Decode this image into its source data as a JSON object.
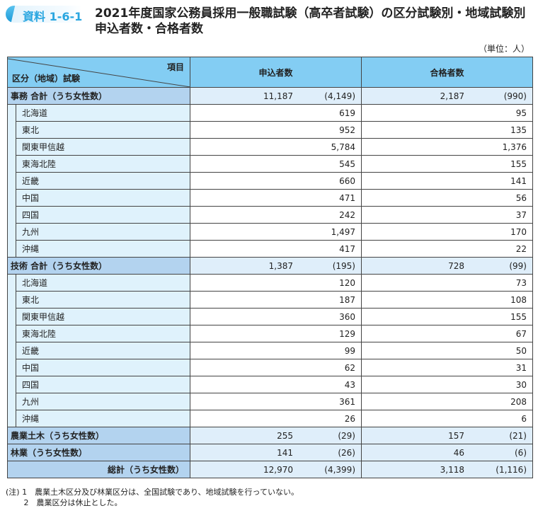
{
  "header": {
    "badge": "資料 1-6-1",
    "title_line1": "2021年度国家公務員採用一般職試験（高卒者試験）の区分試験別・地域試験別",
    "title_line2": "申込者数・合格者数",
    "unit": "（単位：人）"
  },
  "table": {
    "corner_top": "項目",
    "corner_bottom": "区分（地域）試験",
    "col1": "申込者数",
    "col2": "合格者数",
    "jimu": {
      "label": "事務 合計（うち女性数）",
      "app": "11,187",
      "app_f": "(4,149)",
      "pass": "2,187",
      "pass_f": "(990)",
      "rows": [
        [
          "北海道",
          "619",
          "95"
        ],
        [
          "東北",
          "952",
          "135"
        ],
        [
          "関東甲信越",
          "5,784",
          "1,376"
        ],
        [
          "東海北陸",
          "545",
          "155"
        ],
        [
          "近畿",
          "660",
          "141"
        ],
        [
          "中国",
          "471",
          "56"
        ],
        [
          "四国",
          "242",
          "37"
        ],
        [
          "九州",
          "1,497",
          "170"
        ],
        [
          "沖縄",
          "417",
          "22"
        ]
      ]
    },
    "gijutsu": {
      "label": "技術 合計（うち女性数）",
      "app": "1,387",
      "app_f": "(195)",
      "pass": "728",
      "pass_f": "(99)",
      "rows": [
        [
          "北海道",
          "120",
          "73"
        ],
        [
          "東北",
          "187",
          "108"
        ],
        [
          "関東甲信越",
          "360",
          "155"
        ],
        [
          "東海北陸",
          "129",
          "67"
        ],
        [
          "近畿",
          "99",
          "50"
        ],
        [
          "中国",
          "62",
          "31"
        ],
        [
          "四国",
          "43",
          "30"
        ],
        [
          "九州",
          "361",
          "208"
        ],
        [
          "沖縄",
          "26",
          "6"
        ]
      ]
    },
    "nogyo": {
      "label": "農業土木（うち女性数）",
      "app": "255",
      "app_f": "(29)",
      "pass": "157",
      "pass_f": "(21)"
    },
    "ringyo": {
      "label": "林業（うち女性数）",
      "app": "141",
      "app_f": "(26)",
      "pass": "46",
      "pass_f": "(6)"
    },
    "total": {
      "label": "総計（うち女性数）",
      "app": "12,970",
      "app_f": "(4,399)",
      "pass": "3,118",
      "pass_f": "(1,116)"
    }
  },
  "notes": [
    "(注) 1　農業土木区分及び林業区分は、全国試験であり、地域試験を行っていない。",
    "　　 2　農業区分は休止とした。"
  ],
  "colors": {
    "header": "#83cdf3",
    "summary_label": "#b3d3ef",
    "summary_cell": "#dfeefa",
    "region_label": "#dff2fc",
    "badge_text": "#2aa6e0"
  }
}
